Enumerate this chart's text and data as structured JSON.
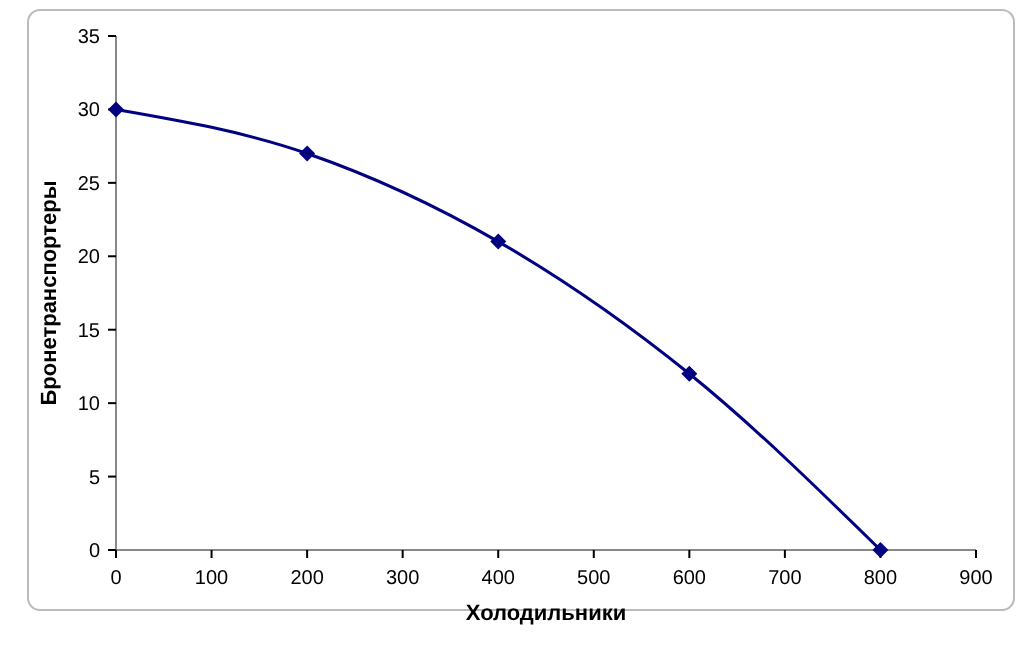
{
  "chart_data": {
    "type": "line",
    "xlabel": "Холодильники",
    "ylabel": "Бронетранспортеры",
    "x": [
      0,
      200,
      400,
      600,
      800
    ],
    "series": [
      {
        "color": "#000080",
        "values": [
          30,
          27,
          21,
          12,
          0
        ]
      }
    ],
    "xlim": [
      0,
      900
    ],
    "xticks": [
      0,
      100,
      200,
      300,
      400,
      500,
      600,
      700,
      800,
      900
    ],
    "ylim": [
      0,
      35
    ],
    "yticks": [
      0,
      5,
      10,
      15,
      20,
      25,
      30,
      35
    ],
    "grid": false,
    "marker": "diamond",
    "line_style": "solid"
  }
}
